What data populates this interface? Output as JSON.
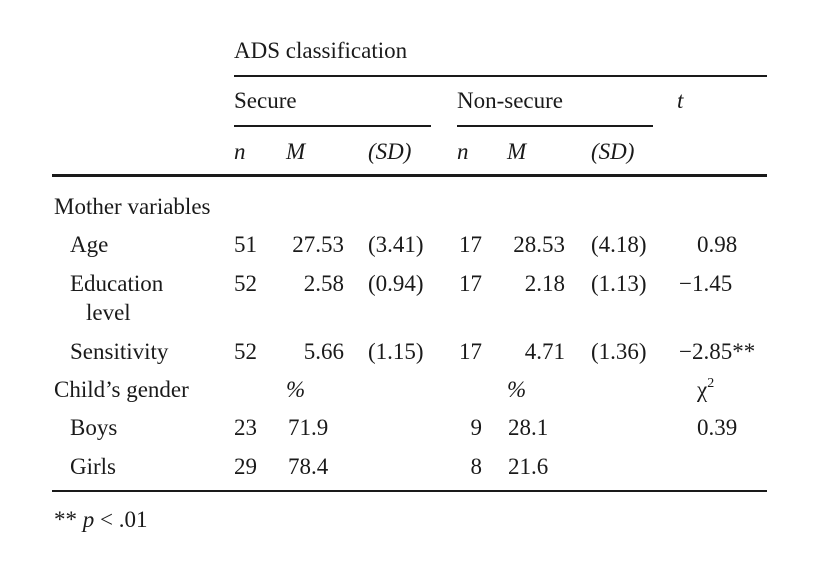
{
  "table": {
    "group_header": "ADS classification",
    "groups": {
      "secure": "Secure",
      "non_secure": "Non-secure",
      "t": "t"
    },
    "cols": {
      "n": "n",
      "m": "M",
      "sd": "(SD)"
    },
    "sections": {
      "mother": "Mother variables",
      "gender": "Child’s gender",
      "pct_secure": "%",
      "pct_non_secure": "%",
      "chi": "χ",
      "chi_sup": "2"
    },
    "rows": {
      "age": {
        "label": "Age",
        "n1": "51",
        "m1": "27.53",
        "sd1": "(3.41)",
        "n2": "17",
        "m2": "28.53",
        "sd2": "(4.18)",
        "t": "0.98"
      },
      "edu": {
        "label1": "Education",
        "label2": "level",
        "n1": "52",
        "m1": "2.58",
        "sd1": "(0.94)",
        "n2": "17",
        "m2": "2.18",
        "sd2": "(1.13)",
        "t": "−1.45"
      },
      "sens": {
        "label": "Sensitivity",
        "n1": "52",
        "m1": "5.66",
        "sd1": "(1.15)",
        "n2": "17",
        "m2": "4.71",
        "sd2": "(1.36)",
        "t": "−2.85**"
      },
      "boys": {
        "label": "Boys",
        "n1": "23",
        "p1": "71.9",
        "n2": "9",
        "p2": "28.1",
        "chi": "0.39"
      },
      "girls": {
        "label": "Girls",
        "n1": "29",
        "p1": "78.4",
        "n2": "8",
        "p2": "21.6"
      }
    },
    "footnote_stars": "**",
    "footnote_p": "p",
    "footnote_rest": "< .01"
  }
}
